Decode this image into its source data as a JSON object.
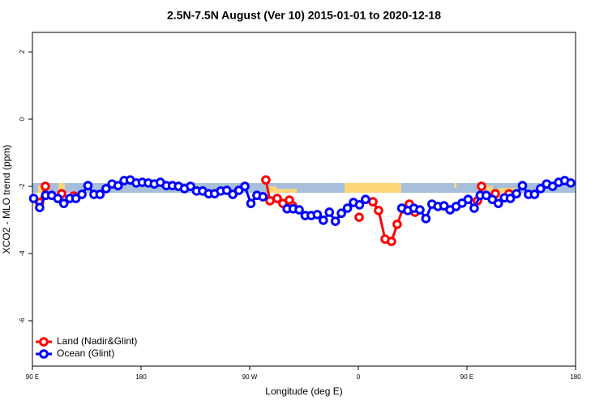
{
  "chart_data": {
    "type": "line",
    "title": "2.5N-7.5N August (Ver 10)   2015-01-01 to 2020-12-18",
    "xlabel": "Longitude (deg E)",
    "ylabel": "XCO2 - MLO trend (ppm)",
    "xlim": [
      90,
      540
    ],
    "xticks": [
      {
        "value": 90,
        "label": "90 E"
      },
      180,
      {
        "value": 270,
        "label": "90 W"
      },
      {
        "value": 360,
        "label": "0"
      },
      {
        "value": 450,
        "label": "90 E"
      },
      {
        "value": 540,
        "label": "180"
      }
    ],
    "ylim": [
      -7.35,
      2.58
    ],
    "yticks": [
      2,
      0,
      -2,
      -4,
      -6
    ],
    "legend": "bottom-left",
    "series": [
      {
        "name": "Land (Nadir&Glint)",
        "color": "#ff0000",
        "x": [
          96.0,
          100.7,
          null,
          114.2,
          null,
          124.3,
          null,
          283.4,
          286.8,
          292.8,
          297.5,
          302.9,
          305.6,
          null,
          360.7,
          null,
          372.1,
          376.8,
          382.2,
          387.5,
          392.2,
          396.9,
          402.3,
          407.0,
          null,
          458.7,
          462.1,
          null,
          473.5,
          null,
          484.9
        ],
        "values": [
          -2.48,
          -2.0,
          null,
          -2.22,
          null,
          -2.29,
          null,
          -1.81,
          -2.43,
          -2.36,
          -2.51,
          -2.41,
          -2.58,
          null,
          -2.92,
          null,
          -2.46,
          -2.72,
          -3.57,
          -3.64,
          -3.13,
          -2.67,
          -2.53,
          -2.77,
          null,
          -2.43,
          -2.0,
          null,
          -2.22,
          null,
          -2.22
        ]
      },
      {
        "name": "Ocean (Glint)",
        "color": "#0000ff",
        "x": [
          91,
          96,
          101,
          106,
          111,
          116,
          121,
          126,
          131,
          136,
          141,
          146,
          151,
          156,
          161,
          166,
          171,
          176,
          181,
          186,
          191,
          196,
          201,
          206,
          211,
          216,
          221,
          226,
          231,
          236,
          241,
          246,
          251,
          256,
          261,
          266,
          271,
          276,
          281,
          286,
          291,
          296,
          301,
          306,
          311,
          316,
          321,
          326,
          331,
          336,
          341,
          346,
          351,
          356,
          361,
          366,
          371,
          376,
          381,
          386,
          391,
          396,
          401,
          406,
          411,
          416,
          421,
          426,
          431,
          436,
          441,
          446,
          451,
          456,
          461,
          466,
          471,
          476,
          481,
          486,
          491,
          496,
          501,
          506,
          511,
          516,
          521,
          526,
          531,
          536
        ],
        "values": [
          -2.36,
          -2.63,
          -2.27,
          -2.27,
          -2.36,
          -2.51,
          -2.36,
          -2.36,
          -2.24,
          -1.98,
          -2.24,
          -2.24,
          -2.07,
          -1.93,
          -1.98,
          -1.83,
          -1.81,
          -1.9,
          -1.88,
          -1.9,
          -1.93,
          -1.88,
          -1.98,
          -1.98,
          -2.0,
          -2.07,
          -2.0,
          -2.14,
          -2.14,
          -2.22,
          -2.22,
          -2.14,
          -2.12,
          -2.24,
          -2.12,
          -2.0,
          -2.51,
          -2.27,
          -2.31,
          null,
          null,
          null,
          -2.67,
          -2.67,
          -2.7,
          -2.87,
          -2.87,
          -2.84,
          -3.01,
          -2.77,
          -3.04,
          -2.8,
          -2.65,
          -2.48,
          -2.55,
          -2.39,
          null,
          null,
          null,
          null,
          null,
          -2.65,
          -2.72,
          -2.65,
          -2.7,
          -2.96,
          -2.53,
          -2.6,
          -2.58,
          -2.7,
          -2.6,
          -2.5,
          -2.39,
          -2.65,
          -2.27,
          -2.27,
          -2.39,
          -2.51,
          -2.34,
          -2.36,
          -2.22,
          -1.98,
          -2.24,
          -2.24,
          -2.07,
          -1.93,
          -2.0,
          -1.88,
          -1.83,
          -1.9
        ]
      }
    ]
  }
}
